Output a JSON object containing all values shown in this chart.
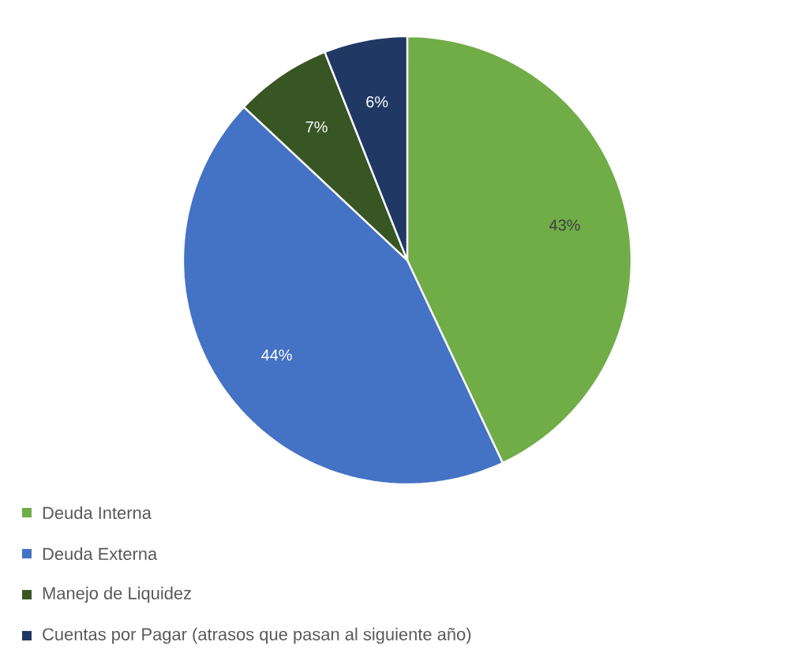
{
  "chart_data": {
    "type": "pie",
    "categories": [
      "Deuda Interna",
      "Deuda Externa",
      "Manejo de Liquidez",
      "Cuentas por Pagar (atrasos que pasan al siguiente año)"
    ],
    "values": [
      43,
      44,
      7,
      6
    ],
    "value_labels": [
      "43%",
      "44%",
      "7%",
      "6%"
    ],
    "colors": [
      "#70ad47",
      "#4472c4",
      "#375623",
      "#203864"
    ],
    "legend": "bottom"
  }
}
